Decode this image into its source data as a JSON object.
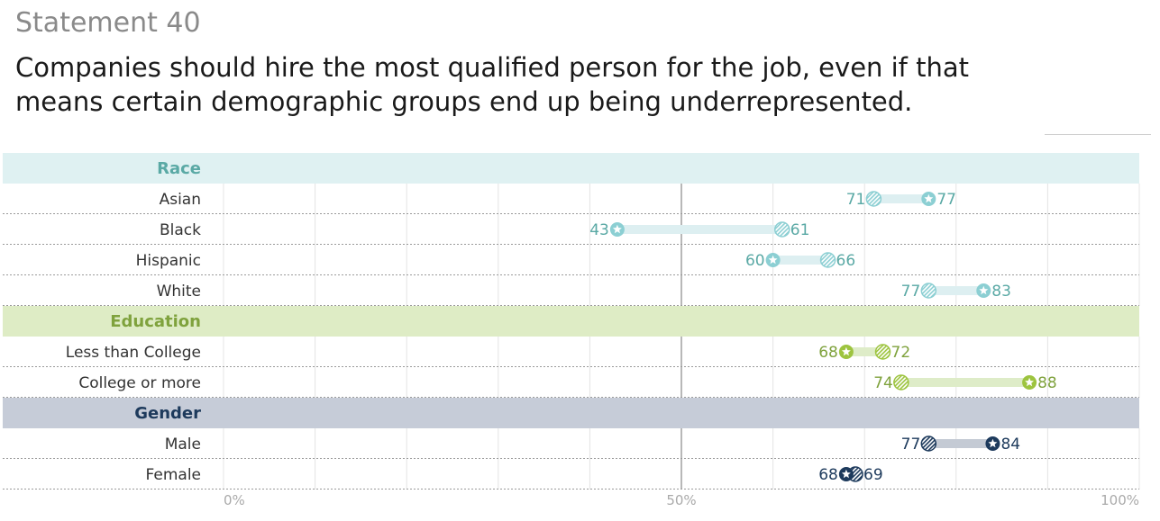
{
  "header": {
    "statement": "Statement 40",
    "title": "Companies should hire the most qualified person for the job, even if that means certain demographic groups end up being underrepresented."
  },
  "chart_data": {
    "type": "dot-range",
    "xlim": [
      0,
      100
    ],
    "x_ticks": [
      {
        "value": 0,
        "label": "0%"
      },
      {
        "value": 50,
        "label": "50%"
      },
      {
        "value": 100,
        "label": "100%"
      }
    ],
    "grid_step": 10,
    "groups": [
      {
        "name": "Race",
        "color": "#5aa9a5",
        "header_bg": "#dff1f2",
        "bar_color": "#ddeff1",
        "dot_color": "#8ccfd3",
        "rows": [
          {
            "label": "Asian",
            "hatched": 71,
            "star": 77
          },
          {
            "label": "Black",
            "hatched": 61,
            "star": 43
          },
          {
            "label": "Hispanic",
            "hatched": 66,
            "star": 60
          },
          {
            "label": "White",
            "hatched": 77,
            "star": 83
          }
        ]
      },
      {
        "name": "Education",
        "color": "#7fa23d",
        "header_bg": "#deecc5",
        "bar_color": "#deecc8",
        "dot_color": "#9dc43f",
        "rows": [
          {
            "label": "Less than College",
            "hatched": 72,
            "star": 68
          },
          {
            "label": "College or more",
            "hatched": 74,
            "star": 88
          }
        ]
      },
      {
        "name": "Gender",
        "color": "#1d3a5c",
        "header_bg": "#c6ccd8",
        "bar_color": "#c4cad4",
        "dot_color": "#1d3a5c",
        "rows": [
          {
            "label": "Male",
            "hatched": 77,
            "star": 84
          },
          {
            "label": "Female",
            "hatched": 69,
            "star": 68
          }
        ]
      }
    ]
  }
}
